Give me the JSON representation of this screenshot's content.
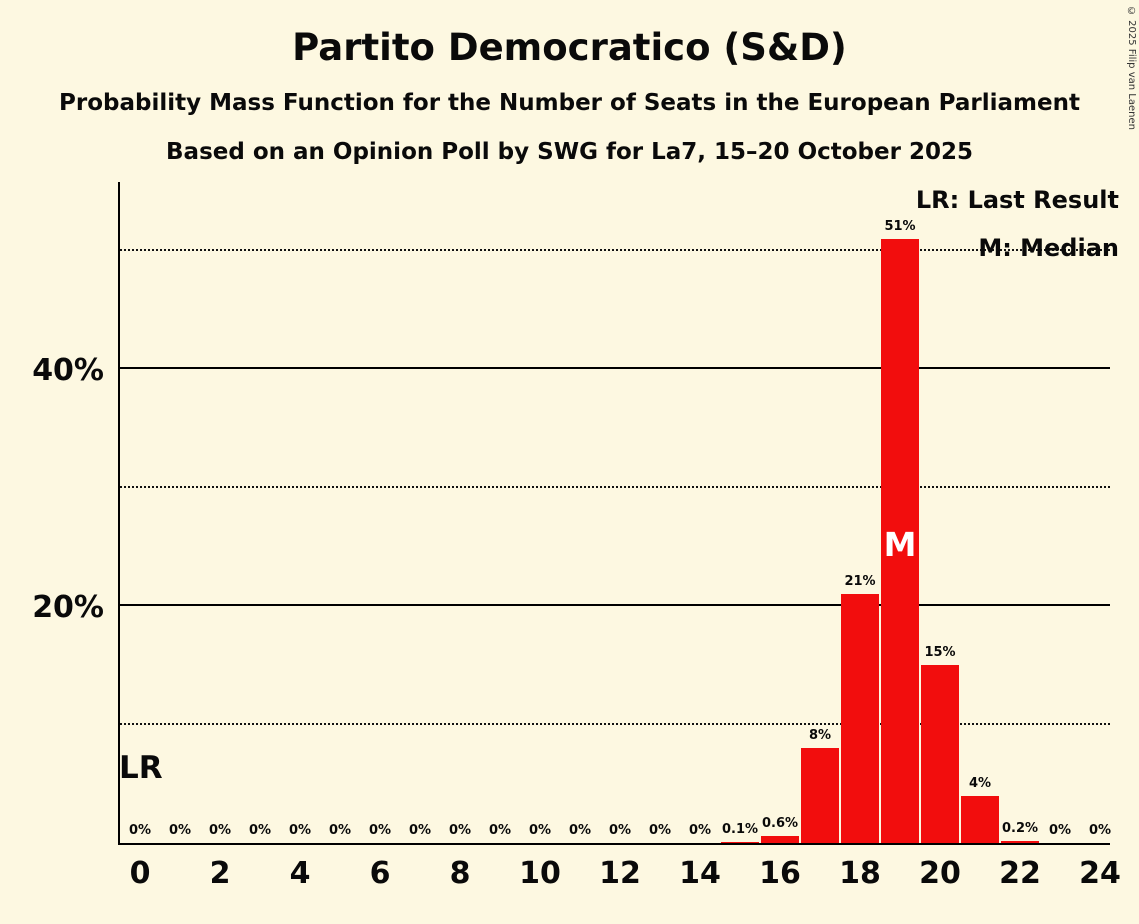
{
  "title": "Partito Democratico (S&D)",
  "subtitle": "Probability Mass Function for the Number of Seats in the European Parliament",
  "poll_info": "Based on an Opinion Poll by SWG for La7, 15–20 October 2025",
  "legend": {
    "last_result": "LR: Last Result",
    "median": "M: Median"
  },
  "annotations": {
    "last_result_label": "LR",
    "median_label": "M"
  },
  "copyright": "© 2025 Filip van Laenen",
  "colors": {
    "background": "#fdf8e1",
    "bar": "#f20d0d",
    "text": "#000000",
    "median_text": "#ffffff"
  },
  "chart_data": {
    "type": "bar",
    "title": "Partito Democratico (S&D)",
    "x": [
      0,
      1,
      2,
      3,
      4,
      5,
      6,
      7,
      8,
      9,
      10,
      11,
      12,
      13,
      14,
      15,
      16,
      17,
      18,
      19,
      20,
      21,
      22,
      23,
      24
    ],
    "values": [
      0,
      0,
      0,
      0,
      0,
      0,
      0,
      0,
      0,
      0,
      0,
      0,
      0,
      0,
      0,
      0.1,
      0.6,
      8,
      21,
      51,
      15,
      4,
      0.2,
      0,
      0
    ],
    "value_labels": [
      "0%",
      "0%",
      "0%",
      "0%",
      "0%",
      "0%",
      "0%",
      "0%",
      "0%",
      "0%",
      "0%",
      "0%",
      "0%",
      "0%",
      "0%",
      "0.1%",
      "0.6%",
      "8%",
      "21%",
      "51%",
      "15%",
      "4%",
      "0.2%",
      "0%",
      "0%"
    ],
    "x_ticks": [
      0,
      2,
      4,
      6,
      8,
      10,
      12,
      14,
      16,
      18,
      20,
      22,
      24
    ],
    "y_ticks": [
      {
        "value": 20,
        "label": "20%"
      },
      {
        "value": 40,
        "label": "40%"
      }
    ],
    "solid_gridlines": [
      20,
      40
    ],
    "dotted_gridlines": [
      10,
      30,
      50
    ],
    "ylim": [
      0,
      56
    ],
    "median_seat": 19
  }
}
